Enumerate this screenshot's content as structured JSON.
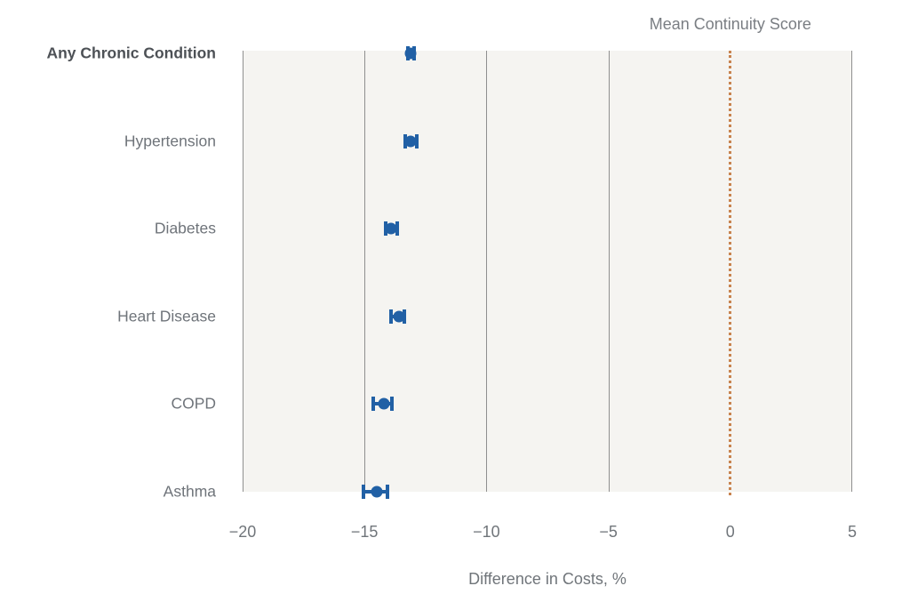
{
  "chart_data": {
    "type": "scatter",
    "subtype": "horizontal-dot-plot-with-error-bars",
    "title": "",
    "xlabel": "Difference in Costs, %",
    "ylabel": "",
    "xlim": [
      -20,
      5
    ],
    "xticks": [
      -20,
      -15,
      -10,
      -5,
      0,
      5
    ],
    "xtick_labels": [
      "−20",
      "−15",
      "−10",
      "−5",
      "0",
      "5"
    ],
    "grid": "vertical",
    "plot_bg": "#f5f4f1",
    "reference_line": {
      "label": "Mean Continuity Score",
      "x": 0,
      "style": "dotted",
      "color": "#c8834e"
    },
    "categories": [
      "Any Chronic Condition",
      "Hypertension",
      "Diabetes",
      "Heart Disease",
      "COPD",
      "Asthma"
    ],
    "series": [
      {
        "name": "Difference in Costs, %",
        "color": "#2160a5",
        "points": [
          {
            "category": "Any Chronic Condition",
            "estimate": -13.1,
            "ci_low": -13.3,
            "ci_high": -12.9,
            "bold": true
          },
          {
            "category": "Hypertension",
            "estimate": -13.1,
            "ci_low": -13.4,
            "ci_high": -12.8,
            "bold": false
          },
          {
            "category": "Diabetes",
            "estimate": -13.9,
            "ci_low": -14.2,
            "ci_high": -13.6,
            "bold": false
          },
          {
            "category": "Heart Disease",
            "estimate": -13.6,
            "ci_low": -14.0,
            "ci_high": -13.3,
            "bold": false
          },
          {
            "category": "COPD",
            "estimate": -14.2,
            "ci_low": -14.7,
            "ci_high": -13.8,
            "bold": false
          },
          {
            "category": "Asthma",
            "estimate": -14.5,
            "ci_low": -15.1,
            "ci_high": -14.0,
            "bold": false
          }
        ]
      }
    ]
  },
  "colors": {
    "marker_blue": "#2160a5",
    "reference_orange": "#c8834e",
    "grid_gray": "#8f8f8f",
    "plot_background": "#f5f4f1",
    "text_gray": "#70757a",
    "text_dark": "#4d5156",
    "page_background": "#ffffff"
  }
}
